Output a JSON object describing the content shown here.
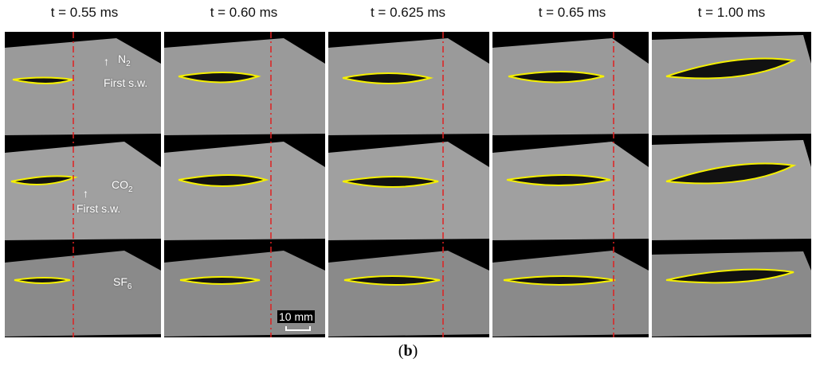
{
  "columns": [
    {
      "time": "t = 0.55 ms"
    },
    {
      "time": "t = 0.60 ms"
    },
    {
      "time": "t = 0.625 ms"
    },
    {
      "time": "t = 0.65 ms"
    },
    {
      "time": "t = 1.00 ms"
    }
  ],
  "gases": {
    "n2": {
      "base": "N",
      "sub": "2"
    },
    "co2": {
      "base": "CO",
      "sub": "2"
    },
    "sf6": {
      "base": "SF",
      "sub": "6"
    }
  },
  "annotation": {
    "first_shock_wave": "First s.w."
  },
  "scale_bar": {
    "label": "10 mm"
  },
  "caption": {
    "open": "(",
    "letter": "b",
    "close": ")"
  },
  "colors": {
    "outline": "#f5f000",
    "reference_line": "#e02020",
    "background": "#000000",
    "schlieren_gray": "#9a9a9a"
  }
}
